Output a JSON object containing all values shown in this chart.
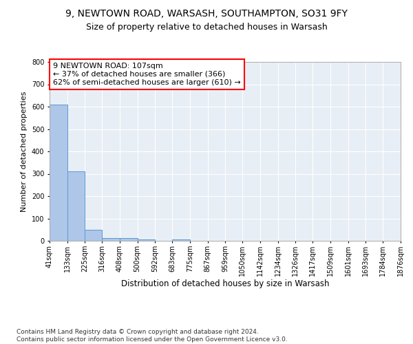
{
  "title1": "9, NEWTOWN ROAD, WARSASH, SOUTHAMPTON, SO31 9FY",
  "title2": "Size of property relative to detached houses in Warsash",
  "xlabel": "Distribution of detached houses by size in Warsash",
  "ylabel": "Number of detached properties",
  "bin_labels": [
    "41sqm",
    "133sqm",
    "225sqm",
    "316sqm",
    "408sqm",
    "500sqm",
    "592sqm",
    "683sqm",
    "775sqm",
    "867sqm",
    "959sqm",
    "1050sqm",
    "1142sqm",
    "1234sqm",
    "1326sqm",
    "1417sqm",
    "1509sqm",
    "1601sqm",
    "1693sqm",
    "1784sqm",
    "1876sqm"
  ],
  "bin_edges": [
    41,
    133,
    225,
    316,
    408,
    500,
    592,
    683,
    775,
    867,
    959,
    1050,
    1142,
    1234,
    1326,
    1417,
    1509,
    1601,
    1693,
    1784,
    1876
  ],
  "bar_heights": [
    610,
    310,
    50,
    12,
    13,
    6,
    0,
    5,
    0,
    0,
    0,
    0,
    0,
    0,
    0,
    0,
    0,
    0,
    0,
    0
  ],
  "bar_color": "#aec6e8",
  "bar_edge_color": "#5b9bd5",
  "annotation_text": "9 NEWTOWN ROAD: 107sqm\n← 37% of detached houses are smaller (366)\n62% of semi-detached houses are larger (610) →",
  "annotation_box_color": "white",
  "annotation_box_edge_color": "red",
  "property_sqm": 107,
  "ylim": [
    0,
    800
  ],
  "yticks": [
    0,
    100,
    200,
    300,
    400,
    500,
    600,
    700,
    800
  ],
  "background_color": "#e8eef5",
  "grid_color": "white",
  "footer_text": "Contains HM Land Registry data © Crown copyright and database right 2024.\nContains public sector information licensed under the Open Government Licence v3.0.",
  "title1_fontsize": 10,
  "title2_fontsize": 9,
  "xlabel_fontsize": 8.5,
  "ylabel_fontsize": 8,
  "annotation_fontsize": 8,
  "footer_fontsize": 6.5,
  "tick_fontsize": 7
}
